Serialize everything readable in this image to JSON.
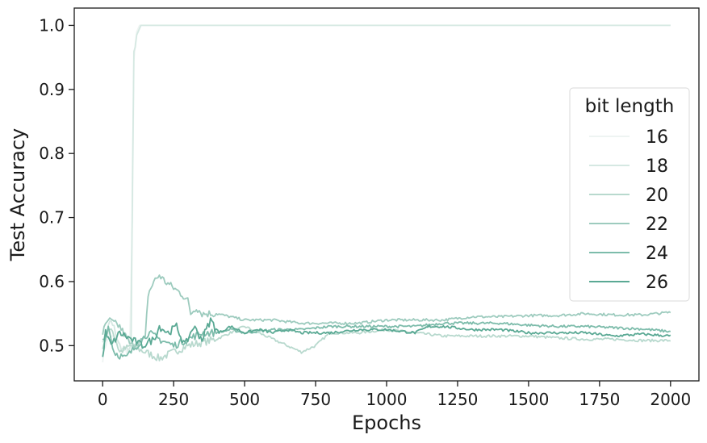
{
  "chart_data": {
    "type": "line",
    "xlabel": "Epochs",
    "ylabel": "Test Accuracy",
    "xlim": [
      -100,
      2100
    ],
    "ylim": [
      0.445,
      1.027
    ],
    "xticks": [
      0,
      250,
      500,
      750,
      1000,
      1250,
      1500,
      1750,
      2000
    ],
    "xtick_labels": [
      "0",
      "250",
      "500",
      "750",
      "1000",
      "1250",
      "1500",
      "1750",
      "2000"
    ],
    "yticks": [
      0.5,
      0.6,
      0.7,
      0.8,
      0.9,
      1.0
    ],
    "ytick_labels": [
      "0.5",
      "0.6",
      "0.7",
      "0.8",
      "0.9",
      "1.0"
    ],
    "grid": false,
    "legend": {
      "title": "bit length",
      "placement": "right"
    },
    "series": [
      {
        "name": "16",
        "color": "#eef4f2",
        "x": [
          0,
          20,
          60,
          95,
          105,
          110,
          120,
          130,
          140,
          200,
          500,
          1000,
          1500,
          2000
        ],
        "y": [
          0.48,
          0.52,
          0.5,
          0.49,
          0.7,
          0.95,
          0.99,
          1.0,
          1.0,
          1.0,
          1.0,
          1.0,
          1.0,
          1.0
        ]
      },
      {
        "name": "18",
        "color": "#d5e8e2",
        "x": [
          0,
          30,
          70,
          100,
          105,
          110,
          115,
          125,
          135,
          150,
          300,
          600,
          1000,
          1500,
          2000
        ],
        "y": [
          0.5,
          0.54,
          0.49,
          0.5,
          0.75,
          0.96,
          0.97,
          0.99,
          1.0,
          1.0,
          1.0,
          1.0,
          1.0,
          1.0,
          1.0
        ]
      },
      {
        "name": "20",
        "color": "#b8d9ce",
        "x": [
          0,
          30,
          60,
          100,
          150,
          200,
          250,
          300,
          400,
          500,
          600,
          650,
          700,
          750,
          800,
          900,
          1000,
          1100,
          1200,
          1300,
          1400,
          1500,
          1600,
          1700,
          1800,
          1900,
          2000
        ],
        "y": [
          0.5,
          0.53,
          0.49,
          0.5,
          0.49,
          0.48,
          0.49,
          0.5,
          0.51,
          0.53,
          0.51,
          0.5,
          0.49,
          0.5,
          0.52,
          0.52,
          0.525,
          0.52,
          0.515,
          0.515,
          0.515,
          0.515,
          0.512,
          0.51,
          0.51,
          0.508,
          0.508
        ]
      },
      {
        "name": "22",
        "color": "#9dcbbe",
        "x": [
          0,
          20,
          60,
          100,
          150,
          160,
          180,
          200,
          220,
          250,
          280,
          300,
          310,
          330,
          350,
          400,
          500,
          600,
          700,
          800,
          900,
          1000,
          1100,
          1200,
          1300,
          1400,
          1500,
          1600,
          1700,
          1800,
          1900,
          2000
        ],
        "y": [
          0.52,
          0.54,
          0.53,
          0.5,
          0.51,
          0.58,
          0.6,
          0.61,
          0.6,
          0.59,
          0.58,
          0.57,
          0.55,
          0.56,
          0.55,
          0.55,
          0.54,
          0.54,
          0.535,
          0.535,
          0.535,
          0.54,
          0.54,
          0.54,
          0.545,
          0.545,
          0.547,
          0.547,
          0.55,
          0.548,
          0.548,
          0.552
        ]
      },
      {
        "name": "24",
        "color": "#7dbcab",
        "x": [
          0,
          20,
          40,
          80,
          120,
          160,
          200,
          250,
          300,
          350,
          400,
          450,
          500,
          600,
          700,
          800,
          900,
          1000,
          1100,
          1200,
          1300,
          1400,
          1500,
          1600,
          1700,
          1800,
          1900,
          2000
        ],
        "y": [
          0.51,
          0.53,
          0.49,
          0.48,
          0.5,
          0.52,
          0.51,
          0.5,
          0.51,
          0.52,
          0.52,
          0.525,
          0.52,
          0.525,
          0.525,
          0.53,
          0.53,
          0.53,
          0.53,
          0.535,
          0.535,
          0.535,
          0.532,
          0.53,
          0.53,
          0.528,
          0.526,
          0.522
        ]
      },
      {
        "name": "26",
        "color": "#5aa994",
        "x": [
          0,
          10,
          30,
          60,
          100,
          140,
          180,
          200,
          230,
          260,
          290,
          320,
          350,
          380,
          410,
          450,
          500,
          550,
          600,
          650,
          700,
          800,
          900,
          1000,
          1100,
          1150,
          1200,
          1300,
          1400,
          1500,
          1600,
          1700,
          1800,
          1900,
          2000
        ],
        "y": [
          0.48,
          0.52,
          0.5,
          0.52,
          0.51,
          0.5,
          0.51,
          0.53,
          0.52,
          0.53,
          0.5,
          0.53,
          0.51,
          0.54,
          0.52,
          0.53,
          0.52,
          0.525,
          0.52,
          0.525,
          0.52,
          0.52,
          0.525,
          0.525,
          0.52,
          0.53,
          0.53,
          0.525,
          0.525,
          0.52,
          0.52,
          0.52,
          0.515,
          0.518,
          0.515
        ]
      }
    ]
  }
}
